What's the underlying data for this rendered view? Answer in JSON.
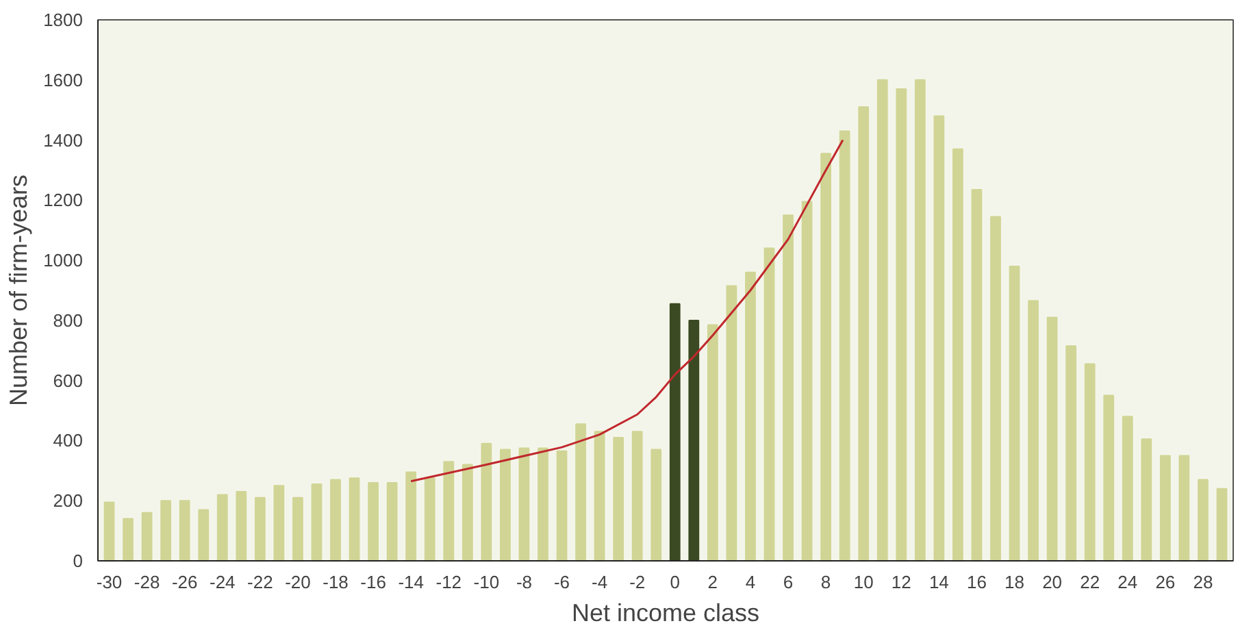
{
  "chart_data": {
    "type": "bar",
    "xlabel": "Net income class",
    "ylabel": "Number of firm-years",
    "x": [
      -30,
      -29,
      -28,
      -27,
      -26,
      -25,
      -24,
      -23,
      -22,
      -21,
      -20,
      -19,
      -18,
      -17,
      -16,
      -15,
      -14,
      -13,
      -12,
      -11,
      -10,
      -9,
      -8,
      -7,
      -6,
      -5,
      -4,
      -3,
      -2,
      -1,
      0,
      1,
      2,
      3,
      4,
      5,
      6,
      7,
      8,
      9,
      10,
      11,
      12,
      13,
      14,
      15,
      16,
      17,
      18,
      19,
      20,
      21,
      22,
      23,
      24,
      25,
      26,
      27,
      28,
      29
    ],
    "xlim": [
      -30.6,
      29.6
    ],
    "xticks": [
      -30,
      -28,
      -26,
      -24,
      -22,
      -20,
      -18,
      -16,
      -14,
      -12,
      -10,
      -8,
      -6,
      -4,
      -2,
      0,
      2,
      4,
      6,
      8,
      10,
      12,
      14,
      16,
      18,
      20,
      22,
      24,
      26,
      28
    ],
    "ylim": [
      0,
      1800
    ],
    "yticks": [
      0,
      200,
      400,
      600,
      800,
      1000,
      1200,
      1400,
      1600,
      1800
    ],
    "grid": false,
    "series": [
      {
        "colors": [
          "#d0d595",
          "#d0d595",
          "#d0d595",
          "#d0d595",
          "#d0d595",
          "#d0d595",
          "#d0d595",
          "#d0d595",
          "#d0d595",
          "#d0d595",
          "#d0d595",
          "#d0d595",
          "#d0d595",
          "#d0d595",
          "#d0d595",
          "#d0d595",
          "#d0d595",
          "#d0d595",
          "#d0d595",
          "#d0d595",
          "#d0d595",
          "#d0d595",
          "#d0d595",
          "#d0d595",
          "#d0d595",
          "#d0d595",
          "#d0d595",
          "#d0d595",
          "#d0d595",
          "#d0d595",
          "#3b4a22",
          "#3b4a22",
          "#d0d595",
          "#d0d595",
          "#d0d595",
          "#d0d595",
          "#d0d595",
          "#d0d595",
          "#d0d595",
          "#d0d595",
          "#d0d595",
          "#d0d595",
          "#d0d595",
          "#d0d595",
          "#d0d595",
          "#d0d595",
          "#d0d595",
          "#d0d595",
          "#d0d595",
          "#d0d595",
          "#d0d595",
          "#d0d595",
          "#d0d595",
          "#d0d595",
          "#d0d595",
          "#d0d595",
          "#d0d595",
          "#d0d595",
          "#d0d595",
          "#d0d595"
        ],
        "values": [
          195,
          140,
          160,
          200,
          200,
          170,
          220,
          230,
          210,
          250,
          210,
          255,
          270,
          275,
          260,
          260,
          295,
          275,
          330,
          320,
          390,
          370,
          375,
          375,
          365,
          455,
          430,
          410,
          430,
          370,
          855,
          800,
          785,
          915,
          960,
          1040,
          1150,
          1195,
          1355,
          1430,
          1510,
          1600,
          1570,
          1600,
          1480,
          1370,
          1235,
          1145,
          980,
          865,
          810,
          715,
          655,
          550,
          480,
          405,
          350,
          350,
          270,
          240
        ]
      },
      {
        "type": "line",
        "color": "#c0282d",
        "line_style": "solid",
        "marker": "none",
        "x": [
          -14,
          -10,
          -6,
          -4,
          -2,
          -1,
          0,
          1,
          2,
          4,
          6,
          8,
          8.9
        ],
        "values": [
          265,
          320,
          378,
          420,
          487,
          545,
          620,
          680,
          750,
          900,
          1070,
          1300,
          1400
        ]
      }
    ]
  }
}
